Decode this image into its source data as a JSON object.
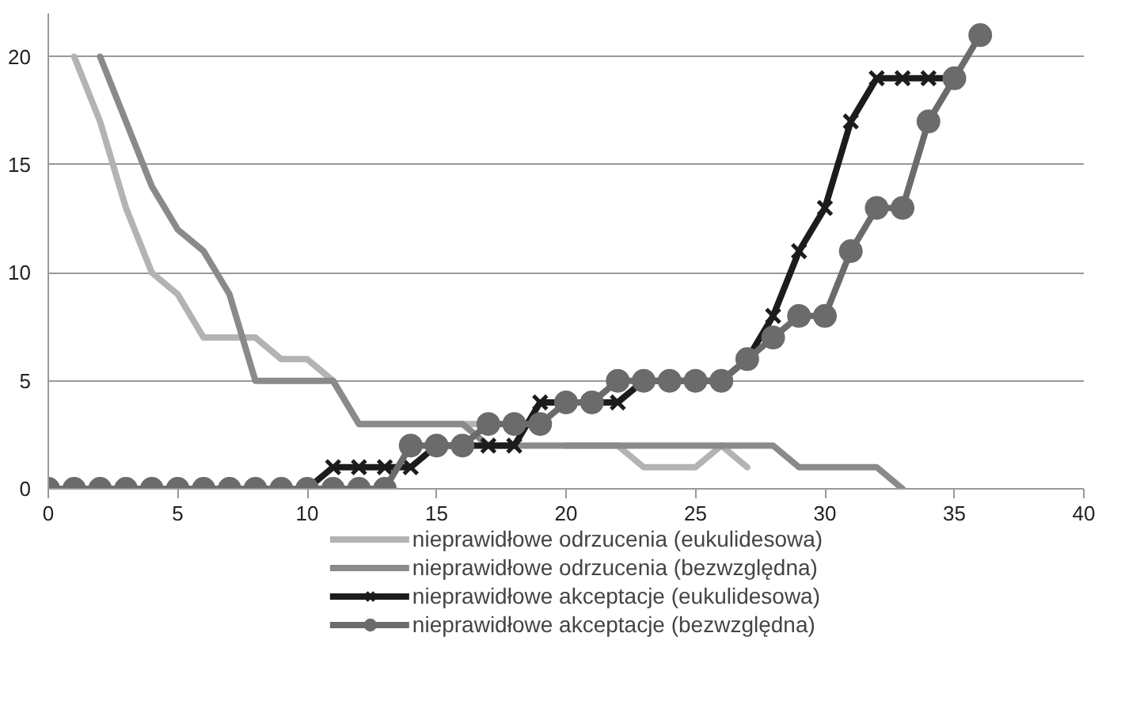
{
  "chart_data": {
    "type": "line",
    "xlim": [
      0,
      40
    ],
    "xticks": [
      0,
      5,
      10,
      15,
      20,
      25,
      30,
      35,
      40
    ],
    "ylim": [
      0,
      22
    ],
    "yticks": [
      0,
      5,
      10,
      15,
      20
    ],
    "grid": "y",
    "legend": "bottom",
    "line_style": "solid",
    "series": [
      {
        "name": "nieprawidłowe odrzucenia (eukulidesowa)",
        "color": "#b3b3b3",
        "marker": "none",
        "x": [
          1,
          2,
          3,
          4,
          5,
          6,
          7,
          8,
          9,
          10,
          11,
          12,
          13,
          14,
          15,
          16,
          17,
          18,
          19,
          20,
          21,
          22,
          23,
          24,
          25,
          26,
          27
        ],
        "values": [
          20,
          17,
          13,
          10,
          9,
          7,
          7,
          7,
          6,
          6,
          5,
          3,
          3,
          3,
          3,
          3,
          3,
          null,
          null,
          2,
          2,
          2,
          1,
          1,
          1,
          2,
          1
        ]
      },
      {
        "name": "nieprawidłowe odrzucenia (bezwzględna)",
        "color": "#8a8a8a",
        "marker": "none",
        "x": [
          2,
          3,
          4,
          5,
          6,
          7,
          8,
          9,
          10,
          11,
          12,
          13,
          14,
          15,
          16,
          17,
          18,
          19,
          20,
          21,
          22,
          23,
          24,
          25,
          26,
          27,
          28,
          29,
          30,
          31,
          32,
          33
        ],
        "values": [
          20,
          17,
          14,
          12,
          11,
          9,
          5,
          5,
          5,
          5,
          3,
          3,
          3,
          3,
          3,
          2,
          2,
          2,
          2,
          2,
          2,
          2,
          2,
          2,
          2,
          2,
          2,
          1,
          1,
          1,
          1,
          0
        ]
      },
      {
        "name": "nieprawidłowe akceptacje (eukulidesowa)",
        "color": "#1c1c1c",
        "marker": "cross",
        "x": [
          0,
          1,
          2,
          3,
          4,
          5,
          6,
          7,
          8,
          9,
          10,
          11,
          12,
          13,
          14,
          15,
          16,
          17,
          18,
          19,
          20,
          21,
          22,
          23,
          24,
          25,
          26,
          27,
          28,
          29,
          30,
          31,
          32,
          33,
          34,
          35
        ],
        "values": [
          0,
          0,
          0,
          0,
          0,
          0,
          0,
          0,
          0,
          0,
          0,
          1,
          1,
          1,
          1,
          2,
          2,
          2,
          2,
          4,
          4,
          4,
          4,
          5,
          5,
          5,
          5,
          6,
          8,
          11,
          13,
          17,
          19,
          19,
          19,
          19
        ]
      },
      {
        "name": "nieprawidłowe akceptacje (bezwzględna)",
        "color": "#6b6b6b",
        "marker": "circle",
        "x": [
          0,
          1,
          2,
          3,
          4,
          5,
          6,
          7,
          8,
          9,
          10,
          11,
          12,
          13,
          14,
          15,
          16,
          17,
          18,
          19,
          20,
          21,
          22,
          23,
          24,
          25,
          26,
          27,
          28,
          29,
          30,
          31,
          32,
          33,
          34,
          35,
          36
        ],
        "values": [
          0,
          0,
          0,
          0,
          0,
          0,
          0,
          0,
          0,
          0,
          0,
          0,
          0,
          0,
          2,
          2,
          2,
          3,
          3,
          3,
          4,
          4,
          5,
          5,
          5,
          5,
          5,
          6,
          7,
          8,
          8,
          11,
          13,
          13,
          17,
          19,
          21
        ]
      }
    ]
  }
}
